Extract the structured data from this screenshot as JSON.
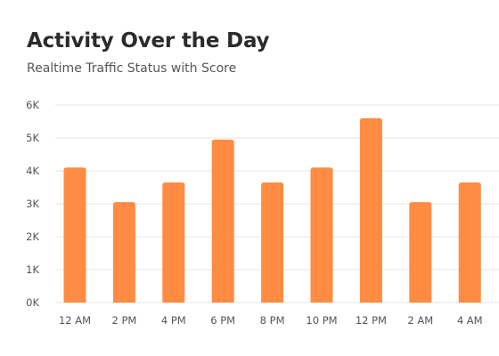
{
  "chart_data": {
    "type": "bar",
    "title": "Activity Over the Day",
    "subtitle": "Realtime Traffic Status with Score",
    "categories": [
      "12 AM",
      "2 PM",
      "4 PM",
      "6 PM",
      "8 PM",
      "10 PM",
      "12 PM",
      "2 AM",
      "4 AM"
    ],
    "values": [
      4100,
      3050,
      3650,
      4950,
      3650,
      4100,
      5600,
      3050,
      3650
    ],
    "ylim": [
      0,
      6000
    ],
    "yticks": [
      0,
      1000,
      2000,
      3000,
      4000,
      5000,
      6000
    ],
    "ytick_labels": [
      "0K",
      "1K",
      "2K",
      "3K",
      "4K",
      "5K",
      "6K"
    ],
    "xlabel": "",
    "ylabel": "",
    "grid": true,
    "bar_color": "#ff8c42",
    "grid_color": "#e6e6e6"
  }
}
